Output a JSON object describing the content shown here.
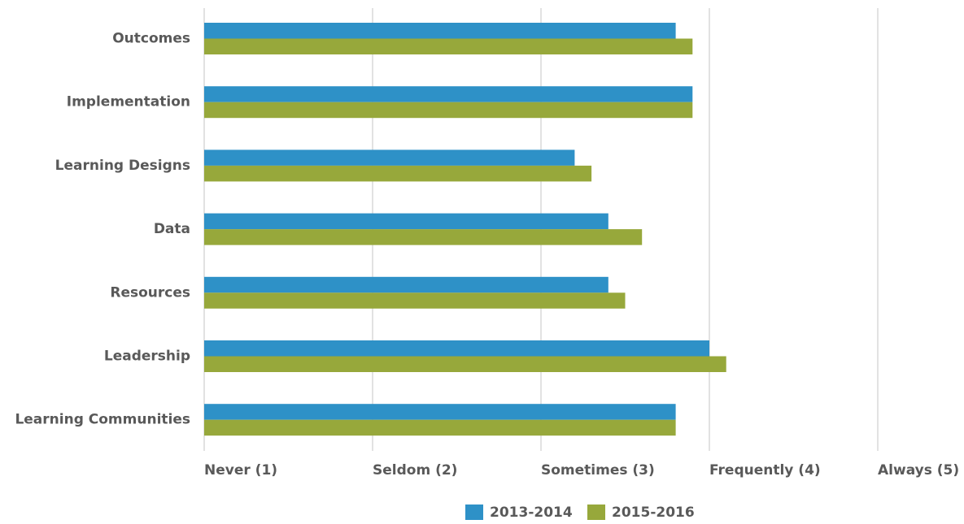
{
  "chart_data": {
    "type": "bar",
    "orientation": "horizontal",
    "categories": [
      "Outcomes",
      "Implementation",
      "Learning Designs",
      "Data",
      "Resources",
      "Leadership",
      "Learning Communities"
    ],
    "series": [
      {
        "name": "2013-2014",
        "color": "#2e91c7",
        "values": [
          3.8,
          3.9,
          3.2,
          3.4,
          3.4,
          4.0,
          3.8
        ]
      },
      {
        "name": "2015-2016",
        "color": "#97a83b",
        "values": [
          3.9,
          3.9,
          3.3,
          3.6,
          3.5,
          4.1,
          3.8
        ]
      }
    ],
    "xlim": [
      1,
      5
    ],
    "x_ticks": [
      {
        "value": 1,
        "label": "Never (1)"
      },
      {
        "value": 2,
        "label": "Seldom (2)"
      },
      {
        "value": 3,
        "label": "Sometimes (3)"
      },
      {
        "value": 4,
        "label": "Frequently (4)"
      },
      {
        "value": 5,
        "label": "Always (5)"
      }
    ],
    "grid": true,
    "legend_position": "bottom",
    "title": "",
    "xlabel": "",
    "ylabel": ""
  }
}
